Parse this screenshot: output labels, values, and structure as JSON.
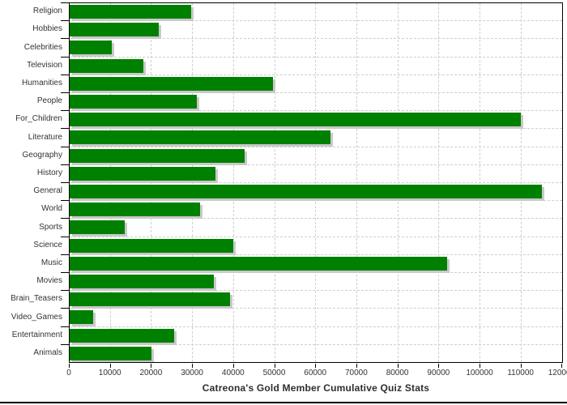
{
  "chart_data": {
    "type": "bar",
    "orientation": "horizontal",
    "title": "Catreona's Gold Member Cumulative Quiz Stats",
    "categories": [
      "Religion",
      "Hobbies",
      "Celebrities",
      "Television",
      "Humanities",
      "People",
      "For_Children",
      "Literature",
      "Geography",
      "History",
      "General",
      "World",
      "Sports",
      "Science",
      "Music",
      "Movies",
      "Brain_Teasers",
      "Video_Games",
      "Entertainment",
      "Animals"
    ],
    "values": [
      29600,
      21600,
      10300,
      17900,
      49500,
      31000,
      109900,
      63500,
      42700,
      35500,
      114900,
      31800,
      13400,
      39900,
      92000,
      35200,
      39000,
      5800,
      25500,
      20000
    ],
    "xlim": [
      0,
      120000
    ],
    "x_ticks": [
      0,
      10000,
      20000,
      30000,
      40000,
      50000,
      60000,
      70000,
      80000,
      90000,
      100000,
      110000,
      120000
    ],
    "xlabel": "",
    "ylabel": "",
    "grid": true,
    "legend_position": "none",
    "bar_color": "#008000",
    "shadow_color": "#c9c9c9",
    "grid_color": "#cfcfcf",
    "axis_color": "#000000",
    "label_color": "#333333",
    "title_color": "#2e2e2e",
    "background_color": "#ffffff"
  }
}
